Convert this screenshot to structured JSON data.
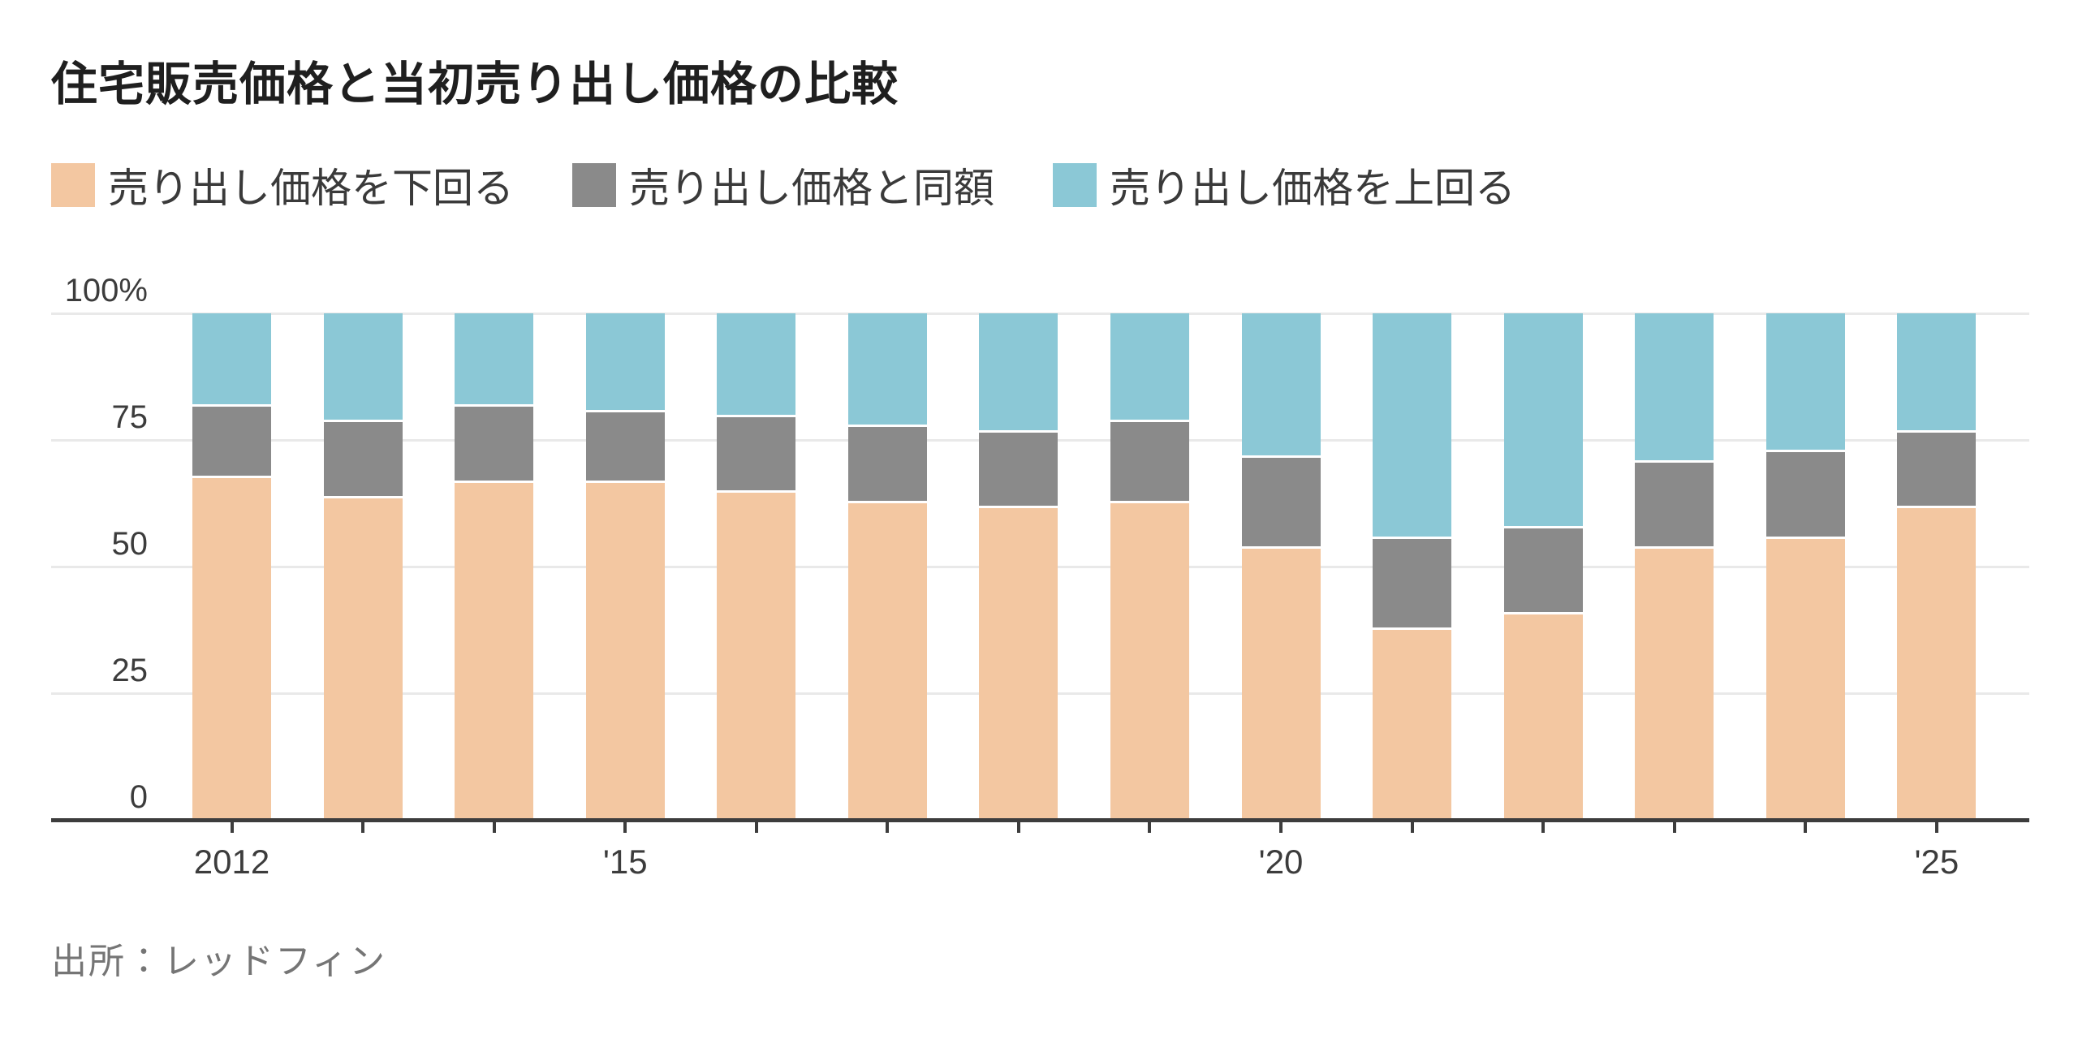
{
  "title": "住宅販売価格と当初売り出し価格の比較",
  "source": "出所：レッドフィン",
  "colors": {
    "below_list": "#F3C7A1",
    "at_list": "#8A8A8A",
    "above_list": "#8BC8D6",
    "grid": "#E9E9E9",
    "axis": "#3D3D3D",
    "title_text": "#1F1F1F",
    "tick_text": "#3C3C3C",
    "source_text": "#757575"
  },
  "chart_data": {
    "type": "bar",
    "variant": "stacked-100-percent",
    "title": "住宅販売価格と当初売り出し価格の比較",
    "xlabel": "",
    "ylabel": "",
    "ylim": [
      0,
      100
    ],
    "grid": true,
    "legend_position": "top",
    "categories": [
      2012,
      2013,
      2014,
      2015,
      2016,
      2017,
      2018,
      2019,
      2020,
      2021,
      2022,
      2023,
      2024,
      2025
    ],
    "x_tick_labels": [
      "2012",
      "",
      "",
      "'15",
      "",
      "",
      "",
      "",
      "'20",
      "",
      "",
      "",
      "",
      "'25"
    ],
    "y_ticks": [
      0,
      25,
      50,
      75,
      100
    ],
    "y_tick_labels": [
      "0",
      "25",
      "50",
      "75",
      "100%"
    ],
    "series": [
      {
        "name": "売り出し価格を下回る",
        "color": "#F3C7A1",
        "values": [
          68,
          64,
          67,
          67,
          65,
          63,
          62,
          63,
          54,
          38,
          41,
          54,
          56,
          62
        ]
      },
      {
        "name": "売り出し価格と同額",
        "color": "#8A8A8A",
        "values": [
          14,
          15,
          15,
          14,
          15,
          15,
          15,
          16,
          18,
          18,
          17,
          17,
          17,
          15
        ]
      },
      {
        "name": "売り出し価格を上回る",
        "color": "#8BC8D6",
        "values": [
          18,
          21,
          18,
          19,
          20,
          22,
          23,
          21,
          28,
          44,
          42,
          29,
          27,
          23
        ]
      }
    ]
  }
}
